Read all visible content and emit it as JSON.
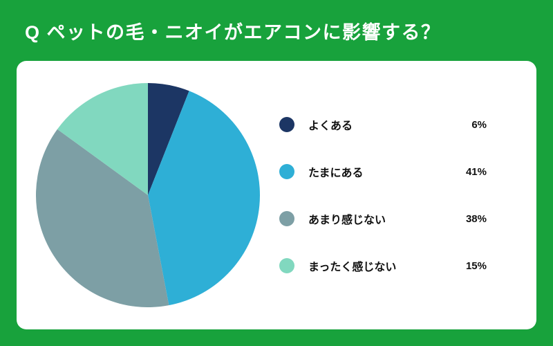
{
  "page": {
    "background_color": "#18a23c",
    "card_color": "#ffffff"
  },
  "header": {
    "title": "Q ペットの毛・ニオイがエアコンに影響する？"
  },
  "legend": {
    "items": [
      {
        "label": "よくある",
        "value": "6%",
        "color": "#1c3664"
      },
      {
        "label": "たまにある",
        "value": "41%",
        "color": "#2eafd6"
      },
      {
        "label": "あまり感じない",
        "value": "38%",
        "color": "#7d9fa5"
      },
      {
        "label": "まったく感じない",
        "value": "15%",
        "color": "#81d8bf"
      }
    ]
  },
  "chart_data": {
    "type": "pie",
    "title": "Q ペットの毛・ニオイがエアコンに影響する？",
    "categories": [
      "よくある",
      "たまにある",
      "あまり感じない",
      "まったく感じない"
    ],
    "values": [
      6,
      41,
      38,
      15
    ],
    "colors": [
      "#1c3664",
      "#2eafd6",
      "#7d9fa5",
      "#81d8bf"
    ],
    "start_angle_deg": 0,
    "direction": "clockwise",
    "legend_position": "right",
    "data_labels": [
      "6%",
      "41%",
      "38%",
      "15%"
    ]
  }
}
